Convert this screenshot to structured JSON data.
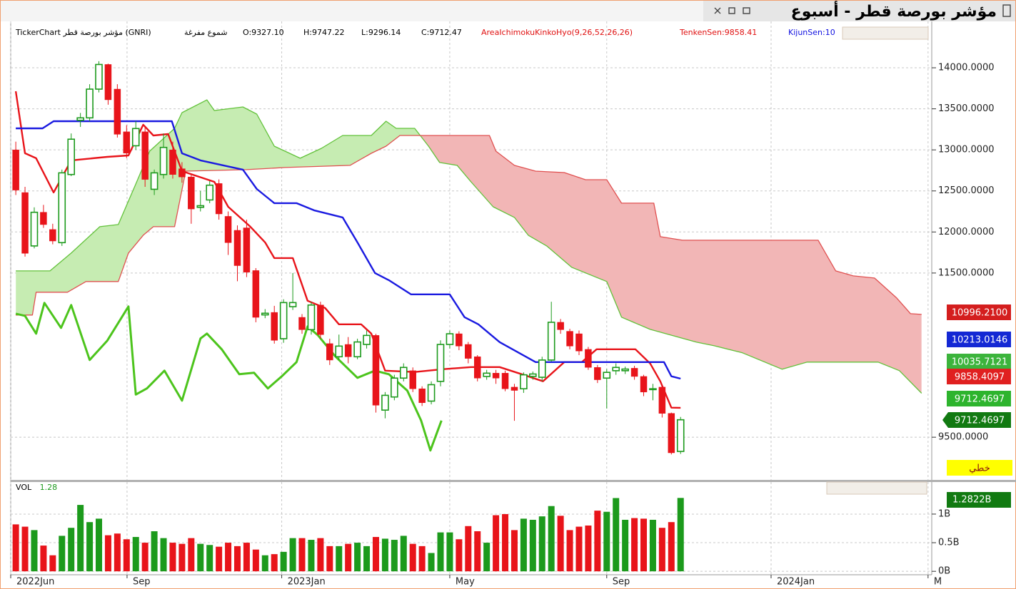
{
  "chart_data": [
    {
      "type": "candlestick",
      "title": "مؤشر بورصة قطر - أسبوع",
      "info": [
        "TickerChart مؤشر بورصة قطر (GNRI)",
        "شموع مفرغة",
        "O:9327.10",
        "H:9747.22",
        "L:9296.14",
        "C:9712.47",
        "AreaIchimokuKinkoHyo(9,26,52,26,26)",
        "TenkenSen:9858.41",
        "KijunSen:10"
      ],
      "info_colors": [
        "#000000",
        "#000000",
        "#000000",
        "#000000",
        "#000000",
        "#000000",
        "#e01010",
        "#e01010",
        "#1010e0"
      ],
      "up_color": "#1c9a1c",
      "down_color": "#e8141a",
      "cloud_up_color": "#c6ecb2",
      "cloud_down_color": "#f2b6b6",
      "xlim": [
        -0.55,
        99.2
      ],
      "ylim": [
        8980,
        14565
      ],
      "yticks": [
        {
          "value": 9500,
          "label": "9500.0000"
        },
        {
          "value": 11500,
          "label": "11500.0000"
        },
        {
          "value": 12000,
          "label": "12000.0000"
        },
        {
          "value": 12500,
          "label": "12500.0000"
        },
        {
          "value": 13000,
          "label": "13000.0000"
        },
        {
          "value": 13500,
          "label": "13500.0000"
        },
        {
          "value": 14000,
          "label": "14000.0000"
        }
      ],
      "grid": true,
      "x": [
        0,
        1,
        2,
        3,
        4,
        5,
        6,
        7,
        8,
        9,
        10,
        11,
        12,
        13,
        14,
        15,
        16,
        17,
        18,
        19,
        20,
        21,
        22,
        23,
        24,
        25,
        26,
        27,
        28,
        29,
        30,
        31,
        32,
        33,
        34,
        35,
        36,
        37,
        38,
        39,
        40,
        41,
        42,
        43,
        44,
        45,
        46,
        47,
        48,
        49,
        50,
        51,
        52,
        53,
        54,
        55,
        56,
        57,
        58,
        59,
        60,
        61,
        62,
        63,
        64,
        65,
        66,
        67,
        68,
        69,
        70,
        71,
        72
      ],
      "open": [
        13000,
        12480,
        11830,
        12240,
        12030,
        11870,
        12700,
        13360,
        13390,
        13740,
        14040,
        13740,
        13220,
        13050,
        13220,
        12520,
        12700,
        13000,
        12770,
        12670,
        12300,
        12390,
        12590,
        12190,
        12020,
        12050,
        11530,
        10990,
        11020,
        10700,
        11090,
        10960,
        10810,
        11110,
        10640,
        10480,
        10630,
        10480,
        10630,
        10740,
        9830,
        9990,
        10220,
        10310,
        10090,
        9940,
        10180,
        10630,
        10760,
        10630,
        10480,
        10240,
        10280,
        10280,
        10110,
        10090,
        10240,
        10230,
        10440,
        10900,
        10790,
        10760,
        10570,
        10350,
        10220,
        10310,
        10310,
        10340,
        10240,
        10080,
        10110,
        9790,
        9327.1
      ],
      "high": [
        13100,
        12550,
        12300,
        12330,
        12100,
        12760,
        13200,
        13450,
        13800,
        14080,
        14050,
        13800,
        13300,
        13350,
        13280,
        12760,
        13200,
        13100,
        12850,
        12700,
        12500,
        12620,
        12640,
        12250,
        12080,
        12150,
        11560,
        11060,
        11100,
        11180,
        11500,
        11000,
        11150,
        11150,
        10700,
        10750,
        10720,
        10700,
        10800,
        10760,
        10050,
        10260,
        10400,
        10350,
        10120,
        10180,
        10680,
        10800,
        10790,
        10660,
        10500,
        10320,
        10320,
        10310,
        10150,
        10290,
        10300,
        10480,
        11150,
        10940,
        10820,
        10800,
        10600,
        10380,
        10330,
        10400,
        10360,
        10370,
        10260,
        10150,
        10130,
        9800,
        9747.22
      ],
      "low": [
        12450,
        11700,
        11800,
        12050,
        11850,
        11830,
        12680,
        13280,
        13350,
        13700,
        13550,
        13150,
        12900,
        13000,
        12550,
        12450,
        12650,
        12650,
        12600,
        12100,
        12250,
        12350,
        12150,
        11720,
        11400,
        11450,
        10900,
        10950,
        10640,
        10650,
        11050,
        10760,
        10750,
        10700,
        10380,
        10440,
        10400,
        10450,
        10580,
        9800,
        9730,
        9950,
        10180,
        10050,
        9880,
        9900,
        10120,
        10580,
        10560,
        10400,
        10180,
        10200,
        10150,
        10060,
        9700,
        10040,
        10200,
        10180,
        10420,
        10760,
        10570,
        10500,
        10320,
        10160,
        9850,
        10260,
        10270,
        10200,
        10000,
        9950,
        9740,
        9290,
        9296.14
      ],
      "close": [
        12510,
        11740,
        12240,
        12090,
        11890,
        12720,
        13130,
        13390,
        13740,
        14040,
        13610,
        13190,
        12960,
        13260,
        12640,
        12720,
        13030,
        12700,
        12670,
        12280,
        12320,
        12570,
        12220,
        11870,
        11590,
        11510,
        10960,
        11010,
        10680,
        11140,
        11140,
        10810,
        11110,
        10750,
        10440,
        10610,
        10480,
        10660,
        10740,
        9890,
        10010,
        10220,
        10350,
        10090,
        9920,
        10140,
        10630,
        10760,
        10610,
        10460,
        10220,
        10280,
        10220,
        10090,
        10070,
        10260,
        10270,
        10440,
        10900,
        10810,
        10610,
        10550,
        10350,
        10200,
        10290,
        10350,
        10330,
        10240,
        10050,
        10090,
        9790,
        9310,
        9712.47
      ],
      "lines": [
        {
          "color": "#62c23a",
          "width": 1.3,
          "x": [
            0,
            3.7,
            6,
            9.1,
            11.1,
            13,
            14.5,
            17.2,
            18,
            20.7,
            21.5,
            24.6,
            26.1,
            28,
            30.8,
            33.1,
            35.4,
            38.5,
            40.1,
            41.2,
            43.2,
            44.7,
            45.9,
            47.8,
            49.3,
            51.7,
            54,
            55.5,
            57.5,
            60.2,
            64,
            65.6,
            68.7,
            73.7,
            75.6,
            78.7,
            83,
            85.7,
            93.4,
            95.7,
            98.1
          ],
          "values": [
            11526,
            11526,
            11743,
            12064,
            12090,
            12585,
            12984,
            13262,
            13453,
            13609,
            13479,
            13523,
            13436,
            13045,
            12898,
            13019,
            13175,
            13175,
            13349,
            13262,
            13262,
            13045,
            12846,
            12811,
            12611,
            12307,
            12177,
            11960,
            11830,
            11570,
            11396,
            10962,
            10814,
            10658,
            10615,
            10528,
            10328,
            10415,
            10415,
            10311,
            10035.7
          ]
        },
        {
          "color": "#e05050",
          "width": 1.3,
          "x": [
            0,
            1.8,
            2.2,
            5.6,
            7.6,
            11.1,
            12.2,
            13.8,
            14.9,
            17.2,
            18.4,
            25,
            29.2,
            36.2,
            38.5,
            40.1,
            41.6,
            43.2,
            51.3,
            52,
            54,
            56.3,
            59.4,
            61.7,
            64,
            65.6,
            69.1,
            69.8,
            72.2,
            86.9,
            88.8,
            90.7,
            93,
            95.4,
            96.9,
            98.1
          ],
          "values": [
            10988,
            10988,
            11266,
            11266,
            11396,
            11396,
            11743,
            11960,
            12064,
            12064,
            12741,
            12759,
            12785,
            12811,
            12958,
            13045,
            13175,
            13175,
            13175,
            12984,
            12811,
            12741,
            12724,
            12637,
            12637,
            12351,
            12351,
            11943,
            11899,
            11899,
            11526,
            11465,
            11439,
            11196,
            11005,
            10996.21
          ]
        },
        {
          "color": "#e8141a",
          "width": 2.4,
          "x": [
            0,
            1,
            2.2,
            4.1,
            6,
            9.9,
            12.2,
            13.8,
            14.9,
            16.5,
            18,
            21.5,
            23,
            25.4,
            27,
            28,
            30,
            31.6,
            33.5,
            35,
            37.4,
            38.5,
            40,
            43.2,
            46.2,
            49.3,
            52.4,
            54.8,
            57.1,
            59.4,
            61.3,
            62.9,
            67.1,
            68.7,
            69.8,
            71,
            72
          ],
          "values": [
            13714,
            12959,
            12898,
            12481,
            12872,
            12915,
            12932,
            13306,
            13175,
            13193,
            12741,
            12611,
            12307,
            12064,
            11873,
            11682,
            11682,
            11162,
            11075,
            10875,
            10875,
            10762,
            10311,
            10294,
            10328,
            10354,
            10354,
            10267,
            10181,
            10415,
            10415,
            10571,
            10571,
            10398,
            10181,
            9860,
            9858.41
          ]
        },
        {
          "color": "#1a1ae0",
          "width": 2.4,
          "x": [
            0,
            2.9,
            4.1,
            16.9,
            18,
            20,
            24.6,
            26.1,
            28,
            30.4,
            32.3,
            35.4,
            37,
            38.9,
            40.4,
            42.8,
            47,
            48.6,
            50.1,
            52.4,
            56.3,
            70.2,
            71,
            72
          ],
          "values": [
            13262,
            13262,
            13349,
            13349,
            12958,
            12872,
            12759,
            12524,
            12351,
            12351,
            12264,
            12177,
            11873,
            11500,
            11413,
            11240,
            11240,
            10962,
            10875,
            10658,
            10415,
            10415,
            10242,
            10213
          ]
        },
        {
          "color": "#4cc41c",
          "width": 3,
          "x": [
            0,
            1,
            2.2,
            3.1,
            4.9,
            6,
            8,
            9.9,
            12.2,
            13,
            14.2,
            16.1,
            18,
            20,
            20.7,
            22.3,
            24.2,
            25.8,
            27.3,
            28.8,
            30.4,
            31.6,
            32.7,
            34.6,
            37,
            38.9,
            40.4,
            42.4,
            43.9,
            44.9,
            46.1
          ],
          "values": [
            11005,
            10979,
            10762,
            11136,
            10832,
            11110,
            10441,
            10675,
            11092,
            10020,
            10094,
            10311,
            9946,
            10702,
            10762,
            10571,
            10267,
            10285,
            10094,
            10241,
            10415,
            10849,
            10745,
            10485,
            10224,
            10311,
            10267,
            10068,
            9703,
            9339,
            9703
          ]
        }
      ],
      "price_labels": [
        {
          "label": "10996.2100",
          "color": "#d41e1e",
          "text_color": "#ffffff"
        },
        {
          "label": "10213.0146",
          "color": "#1428d4",
          "text_color": "#ffffff"
        },
        {
          "label": "10035.7121",
          "color": "#3cb43c",
          "text_color": "#ffffff"
        },
        {
          "label": "9858.4097",
          "color": "#e02020",
          "text_color": "#ffffff"
        },
        {
          "label": "9712.4697",
          "color": "#2db42d",
          "text_color": "#ffffff"
        },
        {
          "label": "9712.4697",
          "color": "#117a11",
          "text_color": "#ffffff"
        },
        {
          "label": "خطي",
          "color": "#ffff00",
          "text_color": "#8a1010"
        }
      ]
    },
    {
      "type": "bar",
      "label": "VOL",
      "current": "1.28",
      "current_color": "#1c9a1c",
      "badge": "1.2822B",
      "badge_color": "#117a11",
      "xlim": [
        -0.55,
        99.2
      ],
      "ylim": [
        -0.06,
        1.56
      ],
      "yticks": [
        {
          "value": 0,
          "label": "0B"
        },
        {
          "value": 0.5,
          "label": "0.5B"
        },
        {
          "value": 1,
          "label": "1B"
        }
      ],
      "xticks": [
        {
          "value": -0.55,
          "label": "2022Jun"
        },
        {
          "value": 12.05,
          "label": "Sep"
        },
        {
          "value": 28.8,
          "label": "2023Jan"
        },
        {
          "value": 47,
          "label": "May"
        },
        {
          "value": 64,
          "label": "Sep"
        },
        {
          "value": 81.8,
          "label": "2024Jan"
        },
        {
          "value": 98.8,
          "label": "M"
        }
      ],
      "values": [
        0.82,
        0.78,
        0.72,
        0.45,
        0.28,
        0.62,
        0.76,
        1.16,
        0.86,
        0.92,
        0.63,
        0.66,
        0.56,
        0.6,
        0.5,
        0.7,
        0.58,
        0.5,
        0.48,
        0.58,
        0.48,
        0.46,
        0.43,
        0.5,
        0.44,
        0.5,
        0.38,
        0.28,
        0.3,
        0.34,
        0.58,
        0.58,
        0.55,
        0.58,
        0.44,
        0.44,
        0.48,
        0.5,
        0.44,
        0.6,
        0.57,
        0.55,
        0.62,
        0.48,
        0.44,
        0.32,
        0.68,
        0.68,
        0.56,
        0.79,
        0.7,
        0.5,
        0.98,
        1.0,
        0.72,
        0.92,
        0.9,
        0.96,
        1.14,
        0.97,
        0.72,
        0.78,
        0.8,
        1.06,
        1.04,
        1.28,
        0.9,
        0.93,
        0.92,
        0.9,
        0.76,
        0.86,
        1.2822
      ]
    }
  ]
}
